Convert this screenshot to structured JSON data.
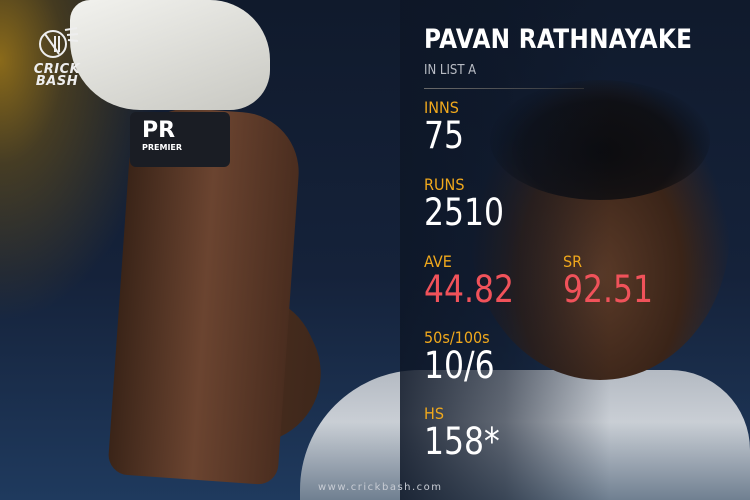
{
  "brand": {
    "logo_text": "CRICK BASH",
    "line1": "CRICK",
    "line2": "BASH"
  },
  "player": {
    "name": "PAVAN RATHNAYAKE",
    "format": "IN LIST A"
  },
  "wristband": {
    "text": "PR",
    "sub": "PREMIER"
  },
  "stats": {
    "inns": {
      "label": "INNS",
      "value": "75"
    },
    "runs": {
      "label": "RUNS",
      "value": "2510"
    },
    "ave": {
      "label": "AVE",
      "value": "44.82"
    },
    "sr": {
      "label": "SR",
      "value": "92.51"
    },
    "fifties_hundreds": {
      "label": "50s/100s",
      "value": "10/6"
    },
    "hs": {
      "label": "HS",
      "value": "158*"
    }
  },
  "footer": {
    "url": "www.crickbash.com"
  },
  "colors": {
    "label": "#f0a81c",
    "highlight": "#f0525a",
    "background": "#0d1626"
  }
}
